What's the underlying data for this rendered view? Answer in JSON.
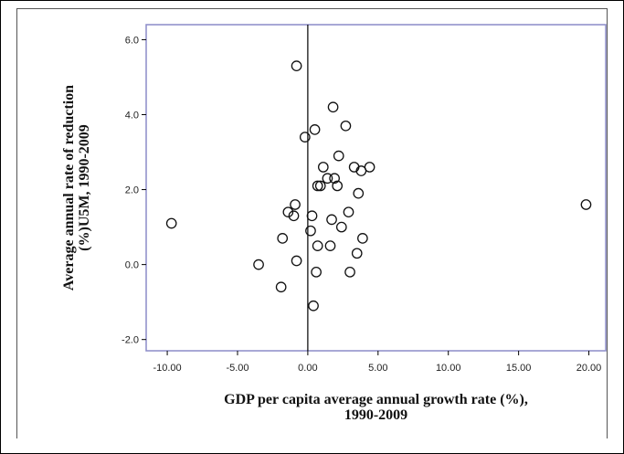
{
  "chart_data": {
    "type": "scatter",
    "xlabel_lines": [
      "GDP per capita average annual growth rate (%),",
      "1990-2009"
    ],
    "ylabel_lines": [
      "Average annual rate of reduction",
      "(%)U5M, 1990-2009"
    ],
    "xlim": [
      -11.5,
      21.2
    ],
    "ylim": [
      -2.3,
      6.4
    ],
    "x_ticks": [
      -10,
      -5,
      0,
      5,
      10,
      15,
      20
    ],
    "x_tick_labels": [
      "-10.00",
      "-5.00",
      "0.00",
      "5.00",
      "10.00",
      "15.00",
      "20.00"
    ],
    "y_ticks": [
      -2,
      0,
      2,
      4,
      6
    ],
    "y_tick_labels": [
      "-2.0",
      "0.0",
      "2.0",
      "4.0",
      "6.0"
    ],
    "reference_line_x": 0,
    "grid": false,
    "points": [
      {
        "x": -9.7,
        "y": 1.1
      },
      {
        "x": -3.5,
        "y": 0.0
      },
      {
        "x": -1.9,
        "y": -0.6
      },
      {
        "x": -1.8,
        "y": 0.7
      },
      {
        "x": -1.4,
        "y": 1.4
      },
      {
        "x": -1.0,
        "y": 1.3
      },
      {
        "x": -0.9,
        "y": 1.6
      },
      {
        "x": -0.8,
        "y": 0.1
      },
      {
        "x": -0.8,
        "y": 5.3
      },
      {
        "x": -0.2,
        "y": 3.4
      },
      {
        "x": 0.2,
        "y": 0.9
      },
      {
        "x": 0.3,
        "y": 1.3
      },
      {
        "x": 0.4,
        "y": -1.1
      },
      {
        "x": 0.5,
        "y": 3.6
      },
      {
        "x": 0.6,
        "y": -0.2
      },
      {
        "x": 0.7,
        "y": 0.5
      },
      {
        "x": 0.7,
        "y": 2.1
      },
      {
        "x": 0.9,
        "y": 2.1
      },
      {
        "x": 1.1,
        "y": 2.6
      },
      {
        "x": 1.4,
        "y": 2.3
      },
      {
        "x": 1.6,
        "y": 0.5
      },
      {
        "x": 1.7,
        "y": 1.2
      },
      {
        "x": 1.8,
        "y": 4.2
      },
      {
        "x": 1.9,
        "y": 2.3
      },
      {
        "x": 2.1,
        "y": 2.1
      },
      {
        "x": 2.2,
        "y": 2.9
      },
      {
        "x": 2.4,
        "y": 1.0
      },
      {
        "x": 2.7,
        "y": 3.7
      },
      {
        "x": 2.9,
        "y": 1.4
      },
      {
        "x": 3.0,
        "y": -0.2
      },
      {
        "x": 3.3,
        "y": 2.6
      },
      {
        "x": 3.5,
        "y": 0.3
      },
      {
        "x": 3.6,
        "y": 1.9
      },
      {
        "x": 3.8,
        "y": 2.5
      },
      {
        "x": 3.9,
        "y": 0.7
      },
      {
        "x": 4.4,
        "y": 2.6
      },
      {
        "x": 19.8,
        "y": 1.6
      }
    ]
  }
}
